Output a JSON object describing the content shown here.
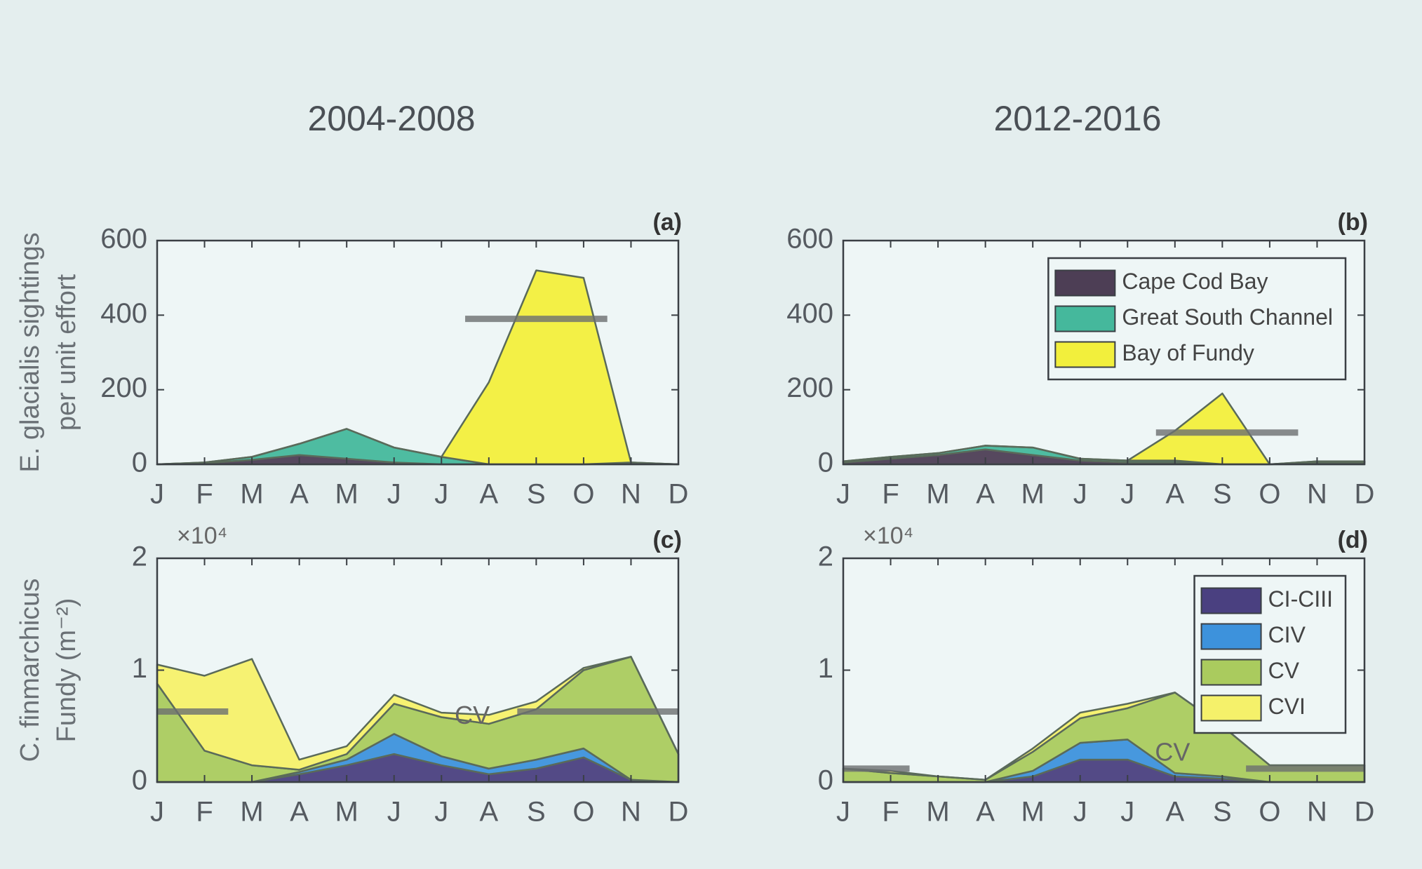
{
  "column_titles": [
    "2004-2008",
    "2012-2016"
  ],
  "chart_data": [
    {
      "type": "area",
      "panel_label": "(a)",
      "ylabel_lines": [
        "E. glacialis sightings",
        "per unit effort"
      ],
      "categories": [
        "J",
        "F",
        "M",
        "A",
        "M",
        "J",
        "J",
        "A",
        "S",
        "O",
        "N",
        "D"
      ],
      "series": [
        {
          "name": "Cape Cod Bay",
          "color": "#4d3e55",
          "values": [
            0,
            3,
            12,
            25,
            15,
            5,
            0,
            0,
            0,
            0,
            3,
            0
          ]
        },
        {
          "name": "Great South Channel",
          "color": "#45b89c",
          "values": [
            0,
            2,
            8,
            30,
            80,
            40,
            20,
            0,
            0,
            0,
            2,
            0
          ]
        },
        {
          "name": "Bay of Fundy",
          "color": "#f2ef3c",
          "values": [
            0,
            0,
            0,
            0,
            0,
            0,
            0,
            220,
            520,
            500,
            0,
            0
          ]
        }
      ],
      "ylim": [
        0,
        600
      ],
      "yticks": [
        0,
        200,
        400,
        600
      ],
      "reference_lines": [
        {
          "value": 390,
          "x": [
            6.5,
            9.5
          ]
        }
      ],
      "legend": false
    },
    {
      "type": "area",
      "panel_label": "(b)",
      "categories": [
        "J",
        "F",
        "M",
        "A",
        "M",
        "J",
        "J",
        "A",
        "S",
        "O",
        "N",
        "D"
      ],
      "series": [
        {
          "name": "Cape Cod Bay",
          "color": "#4d3e55",
          "values": [
            5,
            15,
            25,
            40,
            25,
            10,
            5,
            5,
            0,
            0,
            5,
            5
          ]
        },
        {
          "name": "Great South Channel",
          "color": "#45b89c",
          "values": [
            3,
            5,
            5,
            10,
            20,
            5,
            5,
            5,
            0,
            0,
            3,
            3
          ]
        },
        {
          "name": "Bay of Fundy",
          "color": "#f2ef3c",
          "values": [
            0,
            0,
            0,
            0,
            0,
            0,
            0,
            80,
            190,
            0,
            0,
            0
          ]
        }
      ],
      "ylim": [
        0,
        600
      ],
      "yticks": [
        0,
        200,
        400,
        600
      ],
      "reference_lines": [
        {
          "value": 85,
          "x": [
            6.6,
            9.6
          ]
        }
      ],
      "legend": true,
      "legend_position": "upper-right"
    },
    {
      "type": "area",
      "panel_label": "(c)",
      "ylabel_lines": [
        "C. finmarchicus",
        "Fundy (m⁻²)"
      ],
      "multiplier": "×10⁴",
      "categories": [
        "J",
        "F",
        "M",
        "A",
        "M",
        "J",
        "J",
        "A",
        "S",
        "O",
        "N",
        "D"
      ],
      "series": [
        {
          "name": "CI-CIII",
          "color": "#4a4080",
          "values": [
            0,
            0,
            0,
            0.07,
            0.15,
            0.25,
            0.15,
            0.07,
            0.12,
            0.22,
            0.02,
            0
          ]
        },
        {
          "name": "CIV",
          "color": "#3d92dc",
          "values": [
            0,
            0,
            0,
            0.02,
            0.05,
            0.18,
            0.08,
            0.05,
            0.08,
            0.08,
            0,
            0
          ]
        },
        {
          "name": "CV",
          "color": "#aacb5e",
          "values": [
            0.88,
            0.28,
            0.15,
            0.02,
            0.05,
            0.27,
            0.35,
            0.4,
            0.45,
            0.7,
            1.1,
            0.25
          ]
        },
        {
          "name": "CVI",
          "color": "#f5f16a",
          "values": [
            0.17,
            0.67,
            0.95,
            0.09,
            0.07,
            0.08,
            0.04,
            0.08,
            0.07,
            0.02,
            0,
            0
          ]
        }
      ],
      "ylim": [
        0,
        2
      ],
      "yticks": [
        0,
        1,
        2
      ],
      "reference_lines": [
        {
          "value": 0.63,
          "x": [
            0,
            1.5
          ]
        },
        {
          "value": 0.63,
          "x": [
            7.6,
            11
          ]
        }
      ],
      "annotations": [
        {
          "text": "CV",
          "x": 6.65,
          "y": 0.58
        }
      ],
      "legend": false
    },
    {
      "type": "area",
      "panel_label": "(d)",
      "multiplier": "×10⁴",
      "categories": [
        "J",
        "F",
        "M",
        "A",
        "M",
        "J",
        "J",
        "A",
        "S",
        "O",
        "N",
        "D"
      ],
      "series": [
        {
          "name": "CI-CIII",
          "color": "#4a4080",
          "values": [
            0,
            0,
            0,
            0,
            0.05,
            0.2,
            0.2,
            0.05,
            0.03,
            0,
            0,
            0
          ]
        },
        {
          "name": "CIV",
          "color": "#3d92dc",
          "values": [
            0,
            0,
            0,
            0,
            0.05,
            0.15,
            0.18,
            0.03,
            0.02,
            0,
            0,
            0
          ]
        },
        {
          "name": "CV",
          "color": "#aacb5e",
          "values": [
            0.12,
            0.08,
            0.05,
            0.02,
            0.17,
            0.22,
            0.28,
            0.72,
            0.45,
            0.15,
            0.15,
            0.15
          ]
        },
        {
          "name": "CVI",
          "color": "#f5f16a",
          "values": [
            0,
            0.02,
            0,
            0,
            0.03,
            0.05,
            0.04,
            0,
            0,
            0,
            0,
            0
          ]
        }
      ],
      "ylim": [
        0,
        2
      ],
      "yticks": [
        0,
        1,
        2
      ],
      "reference_lines": [
        {
          "value": 0.12,
          "x": [
            0,
            1.4
          ]
        },
        {
          "value": 0.12,
          "x": [
            8.5,
            11
          ]
        }
      ],
      "annotations": [
        {
          "text": "CV",
          "x": 6.95,
          "y": 0.25
        }
      ],
      "legend": true,
      "legend_position": "upper-right"
    }
  ]
}
